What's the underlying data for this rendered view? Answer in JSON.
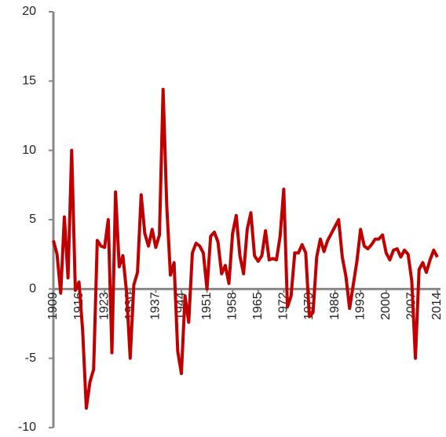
{
  "chart_data": {
    "type": "line",
    "x": [
      1909,
      1910,
      1911,
      1912,
      1913,
      1914,
      1915,
      1916,
      1917,
      1918,
      1919,
      1920,
      1921,
      1922,
      1923,
      1924,
      1925,
      1926,
      1927,
      1928,
      1929,
      1930,
      1931,
      1932,
      1933,
      1934,
      1935,
      1936,
      1937,
      1938,
      1939,
      1940,
      1941,
      1942,
      1943,
      1944,
      1945,
      1946,
      1947,
      1948,
      1949,
      1950,
      1951,
      1952,
      1953,
      1954,
      1955,
      1956,
      1957,
      1958,
      1959,
      1960,
      1961,
      1962,
      1963,
      1964,
      1965,
      1966,
      1967,
      1968,
      1969,
      1970,
      1971,
      1972,
      1973,
      1974,
      1975,
      1976,
      1977,
      1978,
      1979,
      1980,
      1981,
      1982,
      1983,
      1984,
      1985,
      1986,
      1987,
      1988,
      1989,
      1990,
      1991,
      1992,
      1993,
      1994,
      1995,
      1996,
      1997,
      1998,
      1999,
      2000,
      2001,
      2002,
      2003,
      2004,
      2005,
      2006,
      2007,
      2008,
      2009,
      2010,
      2011,
      2012,
      2013,
      2014
    ],
    "series": [
      {
        "color": "#c00000",
        "values": [
          3.5,
          2.5,
          -0.3,
          5.2,
          0.8,
          10.0,
          -0.1,
          0.5,
          -3.0,
          -8.6,
          -6.7,
          -5.8,
          3.5,
          3.1,
          3.0,
          5.0,
          -4.6,
          7.0,
          1.6,
          2.4,
          -0.2,
          -5.0,
          0.3,
          1.2,
          6.8,
          4.0,
          3.1,
          4.3,
          3.0,
          3.9,
          14.4,
          6.0,
          1.0,
          1.9,
          -4.5,
          -6.1,
          -0.5,
          -2.4,
          2.6,
          3.3,
          3.1,
          2.6,
          0.0,
          3.8,
          4.1,
          3.4,
          1.1,
          1.7,
          0.4,
          4.0,
          5.3,
          2.4,
          1.1,
          4.3,
          5.5,
          2.4,
          2.0,
          2.4,
          4.2,
          2.1,
          2.2,
          2.1,
          3.8,
          7.2,
          -1.3,
          -0.5,
          2.6,
          2.6,
          3.2,
          2.6,
          -2.0,
          -1.7,
          2.3,
          3.6,
          2.7,
          3.5,
          4.0,
          4.5,
          5.0,
          2.3,
          0.9,
          -1.4,
          0.3,
          2.0,
          4.3,
          3.1,
          2.9,
          3.2,
          3.6,
          3.6,
          3.9,
          2.6,
          2.1,
          2.8,
          2.9,
          2.3,
          2.8,
          2.5,
          0.6,
          -5.0,
          1.4,
          1.9,
          1.2,
          2.1,
          2.8,
          2.3
        ]
      }
    ],
    "xlim": [
      1909,
      2014
    ],
    "xticks": [
      1909,
      1916,
      1923,
      1930,
      1937,
      1944,
      1951,
      1958,
      1965,
      1972,
      1979,
      1986,
      1993,
      2000,
      2007,
      2014
    ],
    "ylim": [
      -10,
      20
    ],
    "yticks": [
      -10,
      -5,
      0,
      5,
      10,
      15,
      20
    ]
  }
}
